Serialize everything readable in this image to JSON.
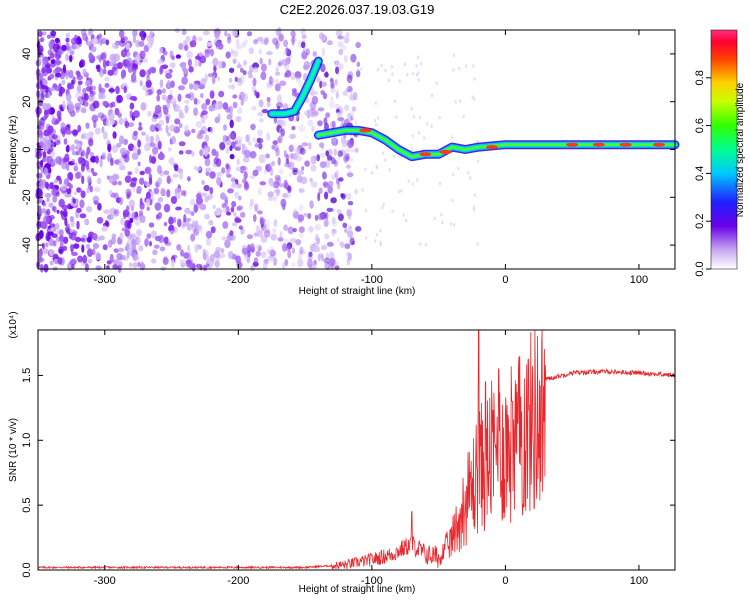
{
  "title": "C2E2.2026.037.19.03.G19",
  "colors": {
    "snr_line": "#e8262b",
    "frame": "#000000",
    "background": "#ffffff"
  },
  "chart_data": [
    {
      "type": "heatmap",
      "name": "spectrogram",
      "title": "C2E2.2026.037.19.03.G19",
      "xlabel": "Height of straight line (km)",
      "ylabel": "Frequency (Hz)",
      "xlim": [
        -350,
        127
      ],
      "ylim": [
        -50,
        50
      ],
      "xticks": [
        -300,
        -200,
        -100,
        0,
        100
      ],
      "yticks": [
        40,
        20,
        0,
        -20,
        -40
      ],
      "colorbar": {
        "label": "Normalized spectral amplitude",
        "range": [
          0,
          1
        ],
        "ticks": [
          "0.0",
          "0.2",
          "0.4",
          "0.6",
          "0.8"
        ]
      },
      "ridge": {
        "description": "dominant signal trace",
        "points": [
          {
            "x": -175,
            "y": 15
          },
          {
            "x": -165,
            "y": 15
          },
          {
            "x": -158,
            "y": 16
          },
          {
            "x": -152,
            "y": 22
          },
          {
            "x": -146,
            "y": 29
          },
          {
            "x": -140,
            "y": 37
          },
          {
            "x": -140,
            "y": 6
          },
          {
            "x": -130,
            "y": 7
          },
          {
            "x": -120,
            "y": 8
          },
          {
            "x": -110,
            "y": 8
          },
          {
            "x": -100,
            "y": 7
          },
          {
            "x": -90,
            "y": 4
          },
          {
            "x": -80,
            "y": 0
          },
          {
            "x": -70,
            "y": -3
          },
          {
            "x": -60,
            "y": -2
          },
          {
            "x": -50,
            "y": -2
          },
          {
            "x": -40,
            "y": 1
          },
          {
            "x": -30,
            "y": 0
          },
          {
            "x": -20,
            "y": 1
          },
          {
            "x": 0,
            "y": 2
          },
          {
            "x": 50,
            "y": 2
          },
          {
            "x": 100,
            "y": 2
          },
          {
            "x": 127,
            "y": 2
          }
        ]
      }
    },
    {
      "type": "line",
      "name": "snr",
      "xlabel": "Height of straight line (km)",
      "ylabel": "SNR (10 * v/v)",
      "multiplier": "(x10⁴)",
      "xlim": [
        -350,
        127
      ],
      "ylim": [
        0,
        1.85
      ],
      "xticks": [
        -300,
        -200,
        -100,
        0,
        100
      ],
      "yticks": [
        "0.0",
        "0.5",
        "1.0",
        "1.5"
      ],
      "envelope": [
        {
          "x": -350,
          "y": 0.02
        },
        {
          "x": -200,
          "y": 0.02
        },
        {
          "x": -150,
          "y": 0.02
        },
        {
          "x": -120,
          "y": 0.04
        },
        {
          "x": -100,
          "y": 0.08
        },
        {
          "x": -85,
          "y": 0.12
        },
        {
          "x": -70,
          "y": 0.2
        },
        {
          "x": -60,
          "y": 0.12
        },
        {
          "x": -50,
          "y": 0.1
        },
        {
          "x": -40,
          "y": 0.28
        },
        {
          "x": -30,
          "y": 0.6
        },
        {
          "x": -20,
          "y": 0.9
        },
        {
          "x": -10,
          "y": 1.05
        },
        {
          "x": 0,
          "y": 1.1
        },
        {
          "x": 10,
          "y": 1.2
        },
        {
          "x": 20,
          "y": 1.35
        },
        {
          "x": 30,
          "y": 1.47
        },
        {
          "x": 50,
          "y": 1.52
        },
        {
          "x": 75,
          "y": 1.53
        },
        {
          "x": 100,
          "y": 1.52
        },
        {
          "x": 127,
          "y": 1.5
        }
      ],
      "peaks": [
        {
          "x": -70,
          "y": 0.45
        },
        {
          "x": -20,
          "y": 1.85
        },
        {
          "x": -15,
          "y": 1.45
        },
        {
          "x": -5,
          "y": 1.55
        },
        {
          "x": 5,
          "y": 1.3
        }
      ]
    }
  ]
}
